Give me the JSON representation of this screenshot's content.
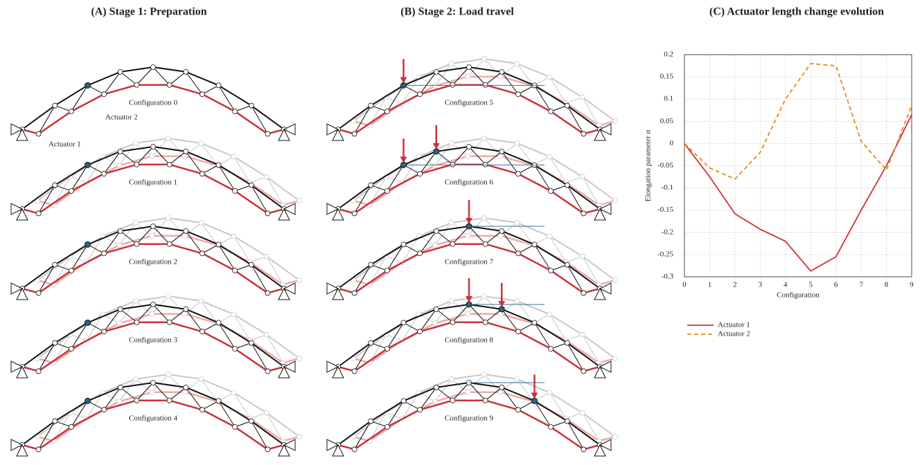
{
  "panels": {
    "a": {
      "title": "(A) Stage 1: Preparation",
      "actuator_labels": [
        "Actuator 1",
        "Actuator 2"
      ],
      "configs": [
        "Configuration 0",
        "Configuration 1",
        "Configuration 2",
        "Configuration 3",
        "Configuration 4"
      ]
    },
    "b": {
      "title": "(B) Stage 2: Load travel",
      "configs": [
        "Configuration 5",
        "Configuration 6",
        "Configuration 7",
        "Configuration 8",
        "Configuration 9"
      ]
    }
  },
  "chart_data": {
    "type": "line",
    "title": "(C) Actuator length change evolution",
    "x_label": "Configuration",
    "y_label": "Elongation parameter α",
    "x": [
      0,
      1,
      2,
      3,
      4,
      5,
      6,
      7,
      8,
      9
    ],
    "series": [
      {
        "name": "Actuator 1",
        "color": "#d12f3a",
        "line_style": "solid",
        "values": [
          0,
          -0.075,
          -0.158,
          -0.193,
          -0.22,
          -0.287,
          -0.255,
          -0.15,
          -0.05,
          0.065
        ]
      },
      {
        "name": "Actuator 2",
        "color": "#e08a1e",
        "line_style": "dashed",
        "values": [
          0,
          -0.055,
          -0.08,
          -0.02,
          0.1,
          0.18,
          0.175,
          0.005,
          -0.06,
          0.085
        ]
      }
    ],
    "xlim": [
      0,
      9
    ],
    "xticks": [
      0,
      1,
      2,
      3,
      4,
      5,
      6,
      7,
      8,
      9
    ],
    "ylim": [
      -0.3,
      0.2
    ],
    "yticks": [
      -0.3,
      -0.25,
      -0.2,
      -0.15,
      -0.1,
      -0.05,
      0,
      0.05,
      0.1,
      0.15,
      0.2
    ],
    "grid": true
  }
}
